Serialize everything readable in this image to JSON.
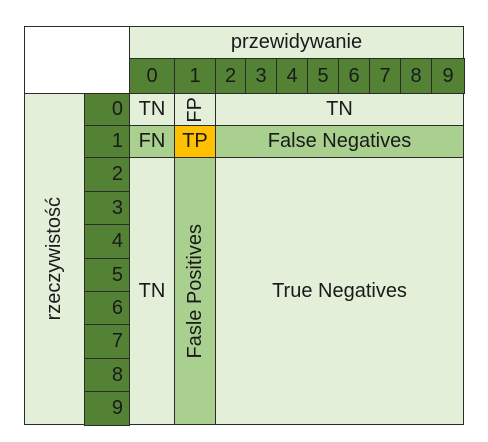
{
  "header": {
    "title": "przewidywanie"
  },
  "side": {
    "title": "rzeczywistość"
  },
  "pred_labels": [
    "0",
    "1",
    "2",
    "3",
    "4",
    "5",
    "6",
    "7",
    "8",
    "9"
  ],
  "actual_labels": [
    "0",
    "1",
    "2",
    "3",
    "4",
    "5",
    "6",
    "7",
    "8",
    "9"
  ],
  "cells": {
    "tn_top": "TN",
    "fp_top": "FP",
    "tn_right": "TN",
    "fn_left": "FN",
    "tp": "TP",
    "false_negatives": "False Negatives",
    "tn_bottom_left": "TN",
    "false_positives": "Fasle Positives",
    "true_negatives": "True Negatives"
  },
  "colors": {
    "light": "#e3efd9",
    "dark": "#548235",
    "mid": "#a9d08e",
    "tp": "#ffc000"
  }
}
